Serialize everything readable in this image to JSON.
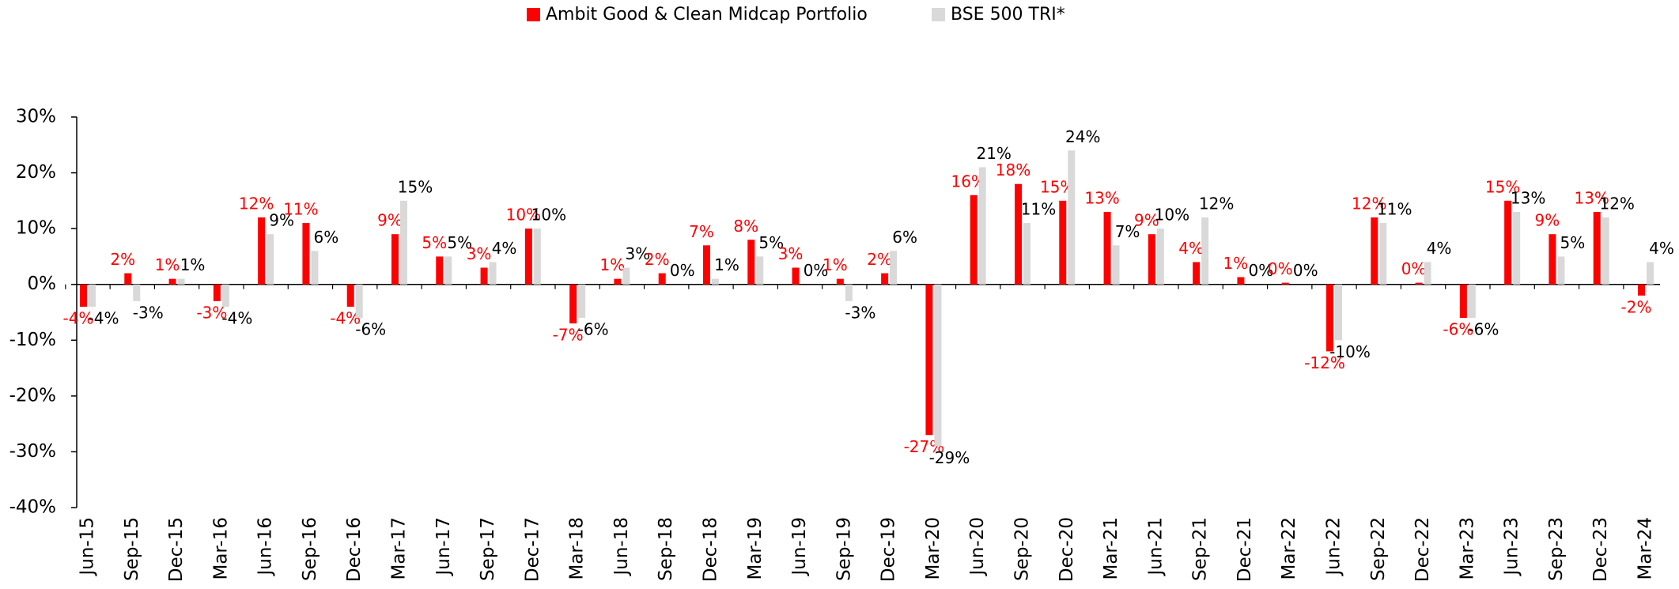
{
  "chart_data": {
    "type": "bar",
    "categories": [
      "Jun-15",
      "Sep-15",
      "Dec-15",
      "Mar-16",
      "Jun-16",
      "Sep-16",
      "Dec-16",
      "Mar-17",
      "Jun-17",
      "Sep-17",
      "Dec-17",
      "Mar-18",
      "Jun-18",
      "Sep-18",
      "Dec-18",
      "Mar-19",
      "Jun-19",
      "Sep-19",
      "Dec-19",
      "Mar-20",
      "Jun-20",
      "Sep-20",
      "Dec-20",
      "Mar-21",
      "Jun-21",
      "Sep-21",
      "Dec-21",
      "Mar-22",
      "Jun-22",
      "Sep-22",
      "Dec-22",
      "Mar-23",
      "Jun-23",
      "Sep-23",
      "Dec-23",
      "Mar-24"
    ],
    "series": [
      {
        "name": "Ambit Good & Clean Midcap Portfolio",
        "color": "#ff0000",
        "values": [
          -4,
          2,
          1,
          -3,
          12,
          11,
          -4,
          9,
          5,
          3,
          10,
          -7,
          1,
          2,
          7,
          8,
          3,
          1,
          2,
          -27,
          16,
          18,
          15,
          13,
          9,
          4,
          1.3,
          0.3,
          -12,
          12,
          0.3,
          -6,
          15,
          9,
          13,
          -2
        ],
        "value_labels": [
          "-4%",
          "2%",
          "1%",
          "-3%",
          "12%",
          "11%",
          "-4%",
          "9%",
          "5%",
          "3%",
          "10%",
          "-7%",
          "1%",
          "2%",
          "7%",
          "8%",
          "3%",
          "1%",
          "2%",
          "-27%",
          "16%",
          "18%",
          "15%",
          "13%",
          "9%",
          "4%",
          "1%",
          "0%",
          "-12%",
          "12%",
          "0%",
          "-6%",
          "15%",
          "9%",
          "13%",
          "-2%"
        ]
      },
      {
        "name": "BSE 500 TRI*",
        "color": "#d9d9d9",
        "values": [
          -4,
          -3,
          1,
          -4,
          9,
          6,
          -6,
          15,
          5,
          4,
          10,
          -6,
          3,
          0,
          1,
          5,
          0,
          -3,
          6,
          -29,
          21,
          11,
          24,
          7,
          10,
          12,
          0,
          0,
          -10,
          11,
          4,
          -6,
          13,
          5,
          12,
          4
        ],
        "value_labels": [
          "-4%",
          "-3%",
          "1%",
          "-4%",
          "9%",
          "6%",
          "-6%",
          "15%",
          "5%",
          "4%",
          "10%",
          "-6%",
          "3%",
          "0%",
          "1%",
          "5%",
          "0%",
          "-3%",
          "6%",
          "-29%",
          "21%",
          "11%",
          "24%",
          "7%",
          "10%",
          "12%",
          "0%",
          "0%",
          "-10%",
          "11%",
          "4%",
          "-6%",
          "13%",
          "5%",
          "12%",
          "4%"
        ]
      }
    ],
    "ylim": [
      -40,
      30
    ],
    "yticks": [
      {
        "value": -40,
        "label": "-40%"
      },
      {
        "value": -30,
        "label": "-30%"
      },
      {
        "value": -20,
        "label": "-20%"
      },
      {
        "value": -10,
        "label": "-10%"
      },
      {
        "value": 0,
        "label": "0%"
      },
      {
        "value": 10,
        "label": "10%"
      },
      {
        "value": 20,
        "label": "20%"
      },
      {
        "value": 30,
        "label": "30%"
      }
    ],
    "legend": "top"
  }
}
